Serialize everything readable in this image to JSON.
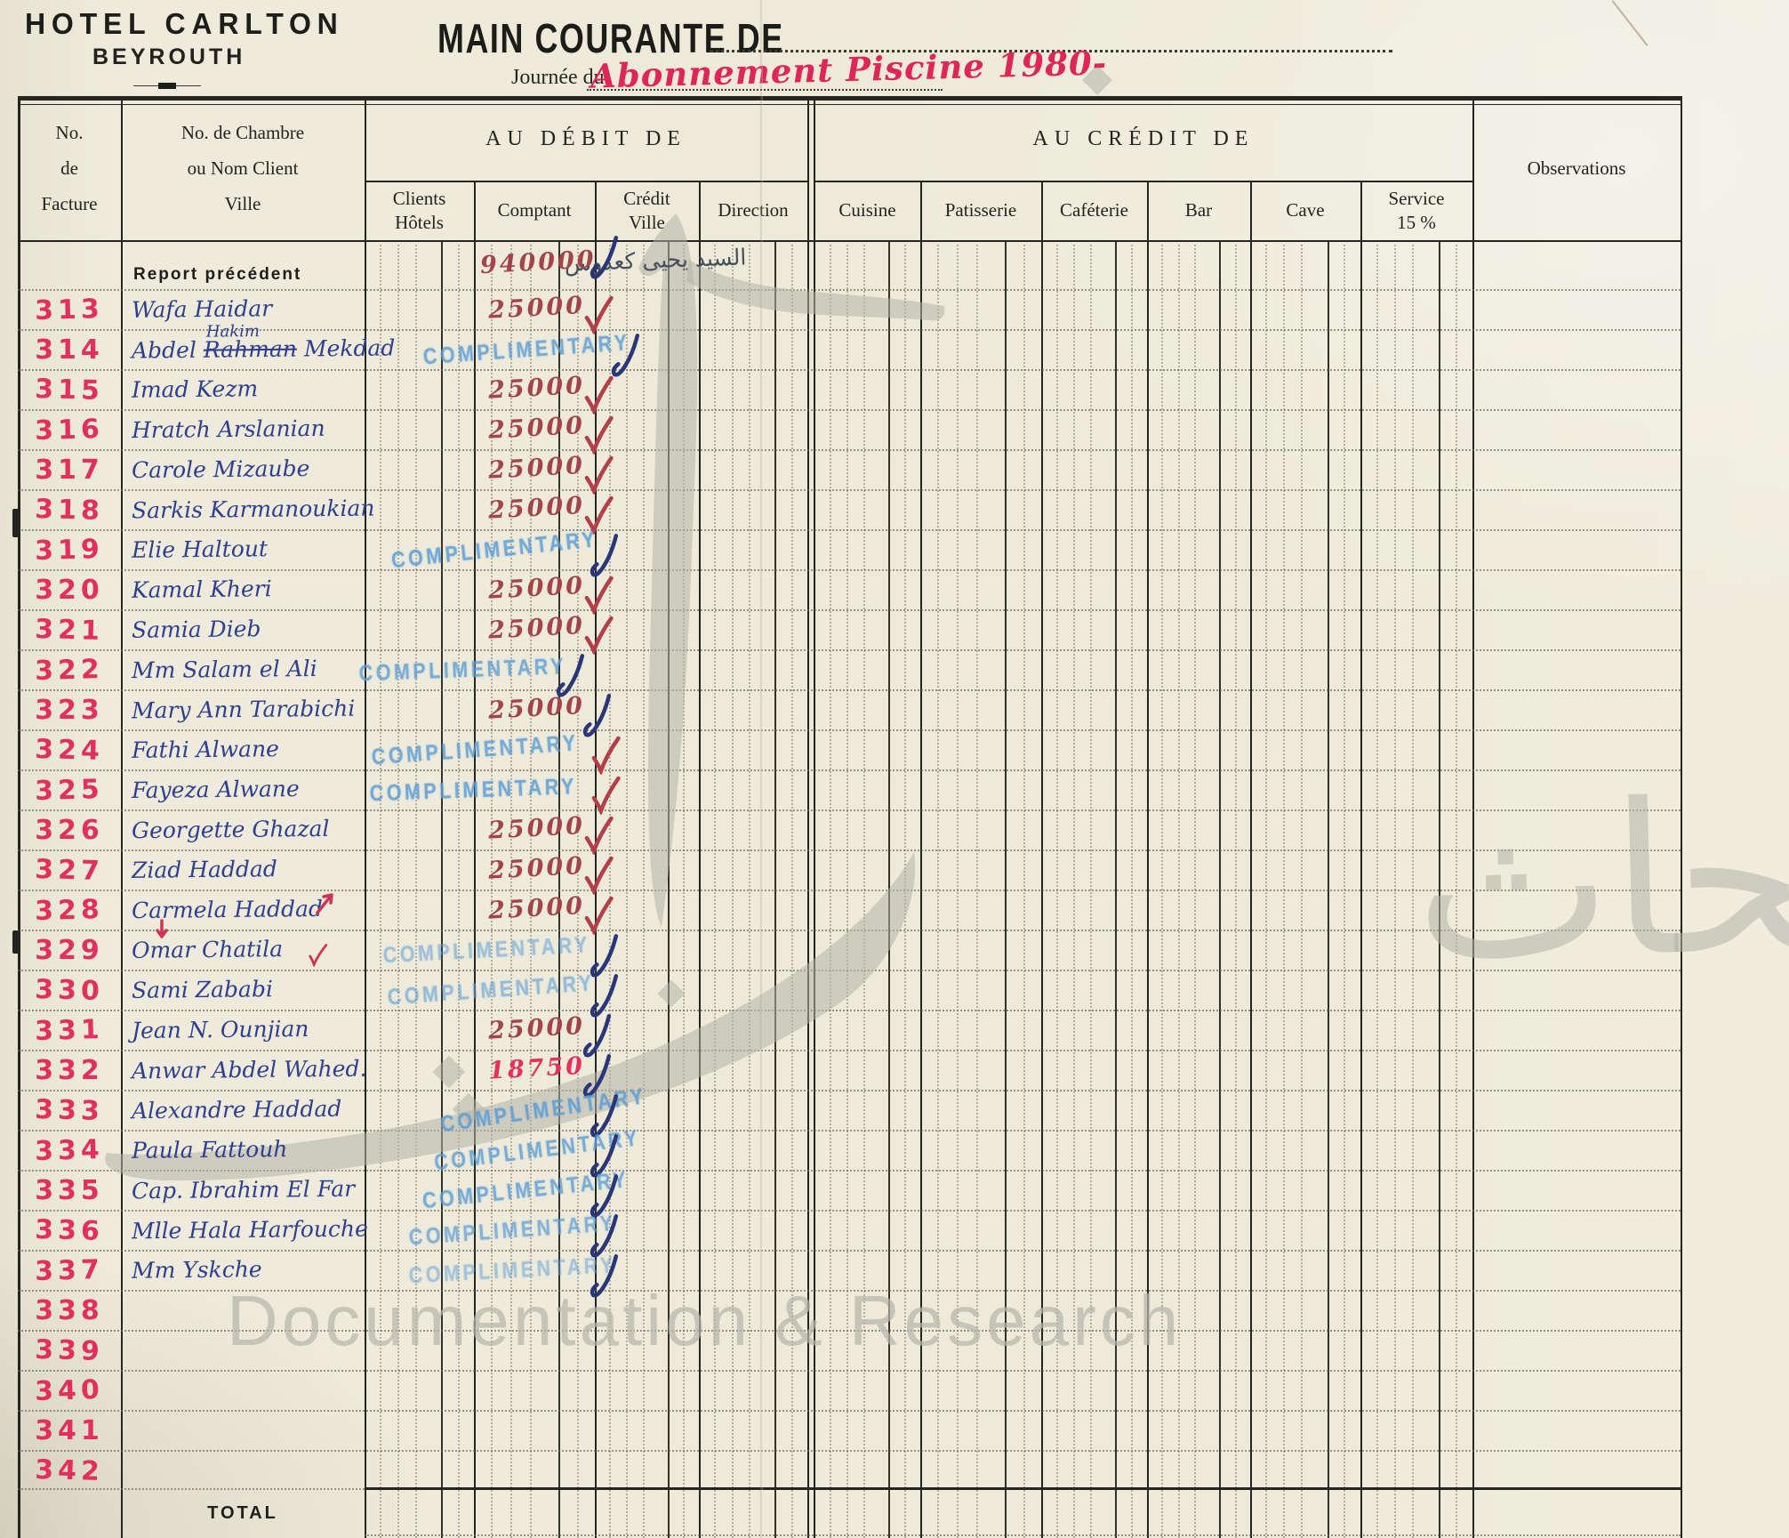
{
  "header": {
    "hotel_name": "HOTEL CARLTON",
    "hotel_city": "BEYROUTH",
    "form_title": "MAIN COURANTE DE",
    "journee_label": "Journée du",
    "journee_value_handwritten": "Abonnement Piscine 1980-"
  },
  "table": {
    "columns": {
      "facture": [
        "No.",
        "de",
        "Facture"
      ],
      "client": [
        "No. de Chambre",
        "ou Nom Client",
        "Ville"
      ],
      "debit_group": "AU DÉBIT DE",
      "credit_group": "AU CRÉDIT DE",
      "debit": [
        [
          "Clients",
          "Hôtels"
        ],
        [
          "Comptant"
        ],
        [
          "Crédit",
          "Ville"
        ],
        [
          "Direction"
        ]
      ],
      "credit": [
        [
          "Cuisine"
        ],
        [
          "Patisserie"
        ],
        [
          "Caféterie"
        ],
        [
          "Bar"
        ],
        [
          "Cave"
        ],
        [
          "Service",
          "15 %"
        ]
      ],
      "observations": "Observations"
    },
    "stamp_text": "COMPLIMENTARY",
    "report_row": {
      "label": "Report précédent",
      "comptant": "940000",
      "check": "navy"
    },
    "total_label": "TOTAL",
    "rows": [
      {
        "no": "313",
        "name": "Wafa Haidar",
        "amount": "25000",
        "ink": "darkred",
        "check": "red"
      },
      {
        "no": "314",
        "name_pre": "Abdel ",
        "name_struck": "Rahman",
        "name_post": " Mekdad",
        "name_above": "Hakim",
        "stamp": true,
        "check": "navy"
      },
      {
        "no": "315",
        "name": "Imad Kezm",
        "amount": "25000",
        "ink": "darkred",
        "check": "red"
      },
      {
        "no": "316",
        "name": "Hratch Arslanian",
        "amount": "25000",
        "ink": "darkred",
        "check": "red"
      },
      {
        "no": "317",
        "name": "Carole Mizaube",
        "amount": "25000",
        "ink": "darkred",
        "check": "red"
      },
      {
        "no": "318",
        "name": "Sarkis Karmanoukian",
        "amount": "25000",
        "ink": "darkred",
        "check": "red"
      },
      {
        "no": "319",
        "name": "Elie Haltout",
        "stamp": true,
        "check": "navy"
      },
      {
        "no": "320",
        "name": "Kamal Kheri",
        "amount": "25000",
        "ink": "darkred",
        "check": "red"
      },
      {
        "no": "321",
        "name": "Samia Dieb",
        "amount": "25000",
        "ink": "darkred",
        "check": "red"
      },
      {
        "no": "322",
        "name": "Mm Salam el Ali",
        "stamp": true,
        "check": "navy"
      },
      {
        "no": "323",
        "name": "Mary Ann Tarabichi",
        "amount": "25000",
        "ink": "darkred",
        "check": "navy"
      },
      {
        "no": "324",
        "name": "Fathi Alwane",
        "stamp": true,
        "check": "red"
      },
      {
        "no": "325",
        "name": "Fayeza Alwane",
        "stamp": true,
        "check": "red"
      },
      {
        "no": "326",
        "name": "Georgette Ghazal",
        "amount": "25000",
        "ink": "darkred",
        "check": "red"
      },
      {
        "no": "327",
        "name": "Ziad Haddad",
        "amount": "25000",
        "ink": "darkred",
        "check": "red"
      },
      {
        "no": "328",
        "name": "Carmela Haddad",
        "amount": "25000",
        "ink": "darkred",
        "check": "red",
        "red_arrow_after": true
      },
      {
        "no": "329",
        "name": "Omar Chatila",
        "stamp": true,
        "check": "navy",
        "red_arrow_above": true,
        "red_check_after": true
      },
      {
        "no": "330",
        "name": "Sami Zababi",
        "stamp": true,
        "check": "navy"
      },
      {
        "no": "331",
        "name": "Jean N. Ounjian",
        "amount": "25000",
        "ink": "darkred",
        "check": "navy"
      },
      {
        "no": "332",
        "name": "Anwar Abdel Wahed.",
        "amount": "18750",
        "ink": "pink",
        "check": "navy"
      },
      {
        "no": "333",
        "name": "Alexandre Haddad",
        "stamp": true,
        "check": "navy"
      },
      {
        "no": "334",
        "name": "Paula Fattouh",
        "stamp": true,
        "check": "navy"
      },
      {
        "no": "335",
        "name": "Cap. Ibrahim El Far",
        "stamp": true,
        "check": "navy"
      },
      {
        "no": "336",
        "name": "Mlle Hala Harfouche",
        "stamp": true,
        "check": "navy"
      },
      {
        "no": "337",
        "name": "Mm Yskche",
        "stamp": true,
        "check": "navy"
      },
      {
        "no": "338"
      },
      {
        "no": "339"
      },
      {
        "no": "340"
      },
      {
        "no": "341"
      },
      {
        "no": "342"
      }
    ]
  },
  "annotations": {
    "arabic_note": "السيد يحيى كعدوس"
  },
  "watermark": {
    "arabic_calligraphy": "للتوثيق والأبحاث",
    "latin_text": "Documentation & Research"
  },
  "colors": {
    "paper": "#edead9",
    "red_marker": "#e22f5e",
    "dark_red_ink": "#a3444b",
    "blue_ink": "#2e3f8e",
    "navy_check": "#293779",
    "stamp_blue": "#5d9ed6",
    "watermark_gray": "#b4b3a8"
  }
}
